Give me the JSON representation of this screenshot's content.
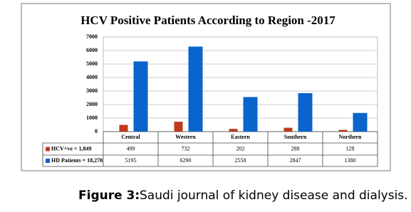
{
  "chart_data": {
    "type": "bar",
    "title": "HCV Positive Patients According to Region -2017",
    "categories": [
      "Central",
      "Western",
      "Eastern",
      "Southern",
      "Northern"
    ],
    "series": [
      {
        "name": "HCV+ve = 1,849",
        "color": "#c0391b",
        "values": [
          499,
          732,
          202,
          288,
          128
        ]
      },
      {
        "name": "HD Patients = 18,270",
        "color": "#0a64cc",
        "values": [
          5195,
          6290,
          2558,
          2847,
          1380
        ]
      }
    ],
    "ylim": [
      0,
      7000
    ],
    "yticks": [
      0,
      1000,
      2000,
      3000,
      4000,
      5000,
      6000,
      7000
    ],
    "grid": true
  },
  "caption": {
    "label": "Figure 3:",
    "text": "Saudi journal of kidney disease and dialysis."
  }
}
